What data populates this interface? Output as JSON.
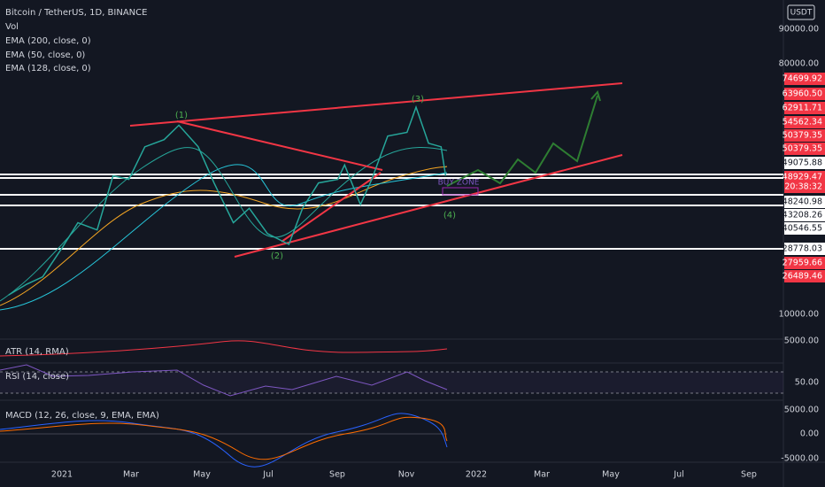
{
  "header": {
    "symbol": "Bitcoin / TetherUS, 1D, BINANCE",
    "studies": [
      "Vol",
      "EMA (200, close, 0)",
      "EMA (50, close, 0)",
      "EMA (128, close, 0)"
    ]
  },
  "currency": "USDT",
  "price_axis": [
    "90000.00",
    "80000.00",
    "10000.00",
    "5000.00",
    "50.00",
    "5000.00",
    "0.00",
    "-5000.00"
  ],
  "price_tags": [
    {
      "label": "74699.92",
      "color": "#f23645"
    },
    {
      "label": "63960.50",
      "color": "#f23645"
    },
    {
      "label": "62911.71",
      "color": "#f23645"
    },
    {
      "label": "54562.34",
      "color": "#f23645"
    },
    {
      "label": "50379.35",
      "color": "#f23645"
    },
    {
      "label": "50379.35",
      "color": "#f23645"
    },
    {
      "label": "49075.88",
      "color": "#ffffff"
    },
    {
      "label": "48929.47",
      "color": "#f23645"
    },
    {
      "label": "20:38:32",
      "color": "#f23645"
    },
    {
      "label": "48240.98",
      "color": "#ffffff"
    },
    {
      "label": "43208.26",
      "color": "#ffffff"
    },
    {
      "label": "40546.55",
      "color": "#ffffff"
    },
    {
      "label": "28778.03",
      "color": "#ffffff"
    },
    {
      "label": "27959.66",
      "color": "#f23645"
    },
    {
      "label": "26489.46",
      "color": "#f23645"
    }
  ],
  "time_axis": [
    "2021",
    "Mar",
    "May",
    "Jul",
    "Sep",
    "Nov",
    "2022",
    "Mar",
    "May",
    "Jul",
    "Sep"
  ],
  "panels": [
    "ATR (14, RMA)",
    "RSI (14, close)",
    "MACD (12, 26, close, 9, EMA, EMA)"
  ],
  "annotations": {
    "waves": [
      "(1)",
      "(2)",
      "(3)",
      "(4)"
    ],
    "zone": "BUY ZONE"
  },
  "price_line": {
    "color": "#26a69a",
    "x": [
      "2020-11-15",
      "2020-12-01",
      "2020-12-15",
      "2021-01-01",
      "2021-01-15",
      "2021-02-01",
      "2021-02-15",
      "2021-03-01",
      "2021-03-15",
      "2021-04-01",
      "2021-04-14",
      "2021-05-01",
      "2021-05-15",
      "2021-06-01",
      "2021-06-15",
      "2021-07-01",
      "2021-07-20",
      "2021-08-01",
      "2021-08-15",
      "2021-09-01",
      "2021-09-07",
      "2021-09-21",
      "2021-10-01",
      "2021-10-15",
      "2021-11-01",
      "2021-11-09",
      "2021-11-20",
      "2021-12-01",
      "2021-12-05"
    ],
    "values": [
      16000,
      19000,
      21000,
      29000,
      36000,
      34000,
      49000,
      48000,
      57000,
      59000,
      63000,
      57000,
      47000,
      36000,
      40000,
      33000,
      30000,
      40000,
      47000,
      48000,
      52000,
      41000,
      48000,
      60000,
      61000,
      68000,
      58000,
      57000,
      49000
    ]
  }
}
